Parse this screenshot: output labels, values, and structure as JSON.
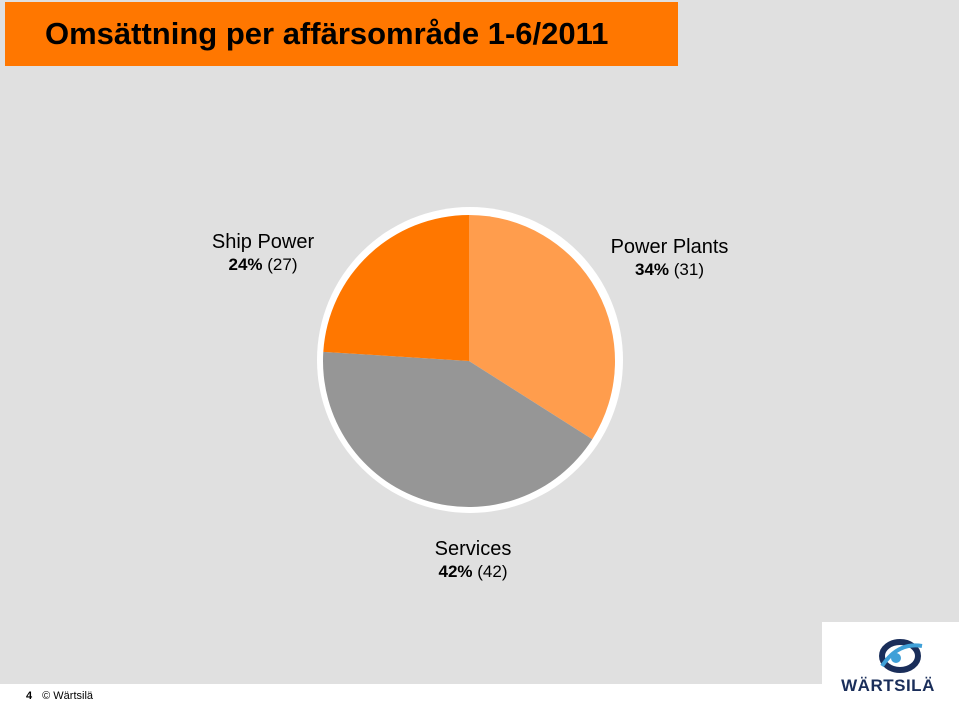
{
  "title": "Omsättning per affärsområde 1-6/2011",
  "chart_data": {
    "type": "pie",
    "title": "Omsättning per affärsområde 1-6/2011",
    "slices": [
      {
        "name": "Power Plants",
        "value": 34,
        "prior": 31,
        "pct_label": "34%",
        "prior_label": "(31)",
        "color": "#ff9d4d"
      },
      {
        "name": "Services",
        "value": 42,
        "prior": 42,
        "pct_label": "42%",
        "prior_label": "(42)",
        "color": "#969696"
      },
      {
        "name": "Ship Power",
        "value": 24,
        "prior": 27,
        "pct_label": "24%",
        "prior_label": "(27)",
        "color": "#ff7700"
      }
    ]
  },
  "footer": {
    "page_number": "4",
    "copyright": "© Wärtsilä"
  },
  "logo": {
    "text": "WÄRTSILÄ",
    "color": "#1a2e5a"
  }
}
